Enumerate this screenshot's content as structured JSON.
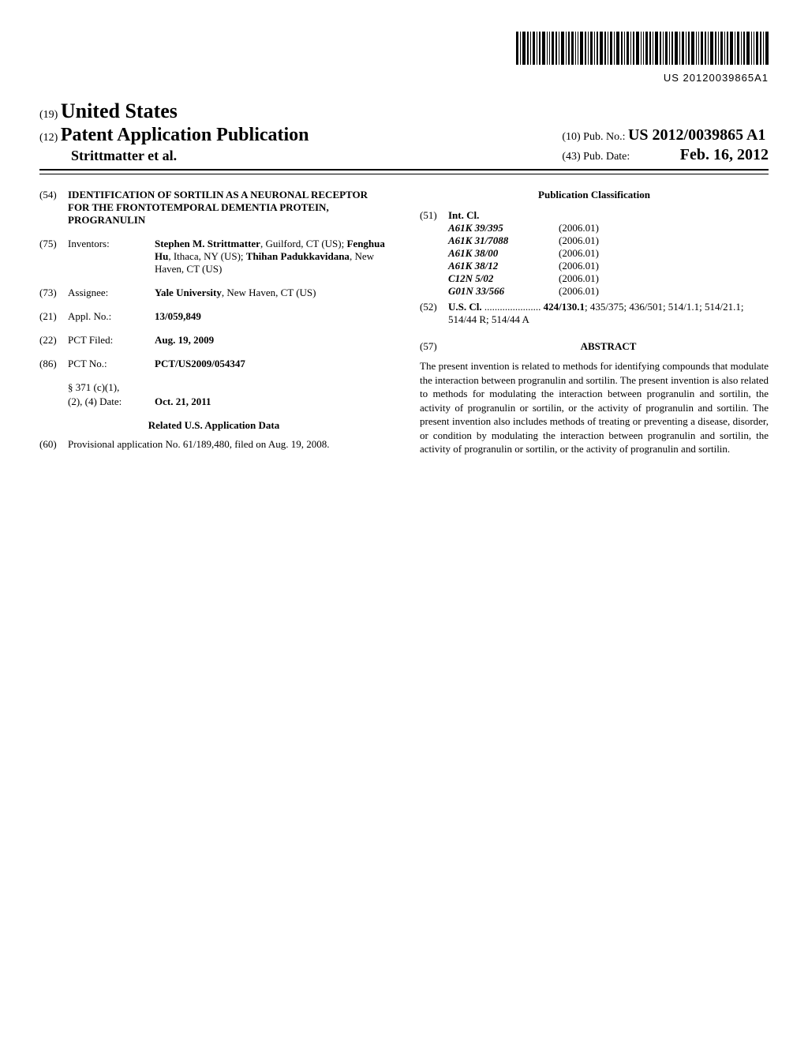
{
  "barcode_number": "US 20120039865A1",
  "header": {
    "prefix19": "(19)",
    "country": "United States",
    "prefix12": "(12)",
    "doc_type": "Patent Application Publication",
    "authors": "Strittmatter et al.",
    "prefix10": "(10)",
    "pubno_label": "Pub. No.:",
    "pubno": "US 2012/0039865 A1",
    "prefix43": "(43)",
    "pubdate_label": "Pub. Date:",
    "pubdate": "Feb. 16, 2012"
  },
  "left": {
    "f54_num": "(54)",
    "f54_title": "IDENTIFICATION OF SORTILIN AS A NEURONAL RECEPTOR FOR THE FRONTOTEMPORAL DEMENTIA PROTEIN, PROGRANULIN",
    "f75_num": "(75)",
    "f75_label": "Inventors:",
    "f75_val": "Stephen M. Strittmatter, Guilford, CT (US); Fenghua Hu, Ithaca, NY (US); Thihan Padukkavidana, New Haven, CT (US)",
    "inv1_name": "Stephen M. Strittmatter",
    "inv1_rest": ", Guilford, CT (US); ",
    "inv2_name": "Fenghua Hu",
    "inv2_rest": ", Ithaca, NY (US); ",
    "inv3_name": "Thihan Padukkavidana",
    "inv3_rest": ", New Haven, CT (US)",
    "f73_num": "(73)",
    "f73_label": "Assignee:",
    "f73_name": "Yale University",
    "f73_rest": ", New Haven, CT (US)",
    "f21_num": "(21)",
    "f21_label": "Appl. No.:",
    "f21_val": "13/059,849",
    "f22_num": "(22)",
    "f22_label": "PCT Filed:",
    "f22_val": "Aug. 19, 2009",
    "f86_num": "(86)",
    "f86_label": "PCT No.:",
    "f86_val": "PCT/US2009/054347",
    "s371_label": "§ 371 (c)(1),",
    "s371_label2": "(2), (4) Date:",
    "s371_val": "Oct. 21, 2011",
    "related_hdr": "Related U.S. Application Data",
    "f60_num": "(60)",
    "f60_val": "Provisional application No. 61/189,480, filed on Aug. 19, 2008."
  },
  "right": {
    "pubclass_hdr": "Publication Classification",
    "f51_num": "(51)",
    "f51_label": "Int. Cl.",
    "intcl": [
      {
        "code": "A61K 39/395",
        "year": "(2006.01)"
      },
      {
        "code": "A61K 31/7088",
        "year": "(2006.01)"
      },
      {
        "code": "A61K 38/00",
        "year": "(2006.01)"
      },
      {
        "code": "A61K 38/12",
        "year": "(2006.01)"
      },
      {
        "code": "C12N 5/02",
        "year": "(2006.01)"
      },
      {
        "code": "G01N 33/566",
        "year": "(2006.01)"
      }
    ],
    "f52_num": "(52)",
    "f52_label": "U.S. Cl.",
    "f52_dots": " ...................... ",
    "f52_bold": "424/130.1",
    "f52_rest": "; 435/375; 436/501; 514/1.1; 514/21.1; 514/44 R; 514/44 A",
    "f57_num": "(57)",
    "abstract_hdr": "ABSTRACT",
    "abstract": "The present invention is related to methods for identifying compounds that modulate the interaction between progranulin and sortilin. The present invention is also related to methods for modulating the interaction between progranulin and sortilin, the activity of progranulin or sortilin, or the activity of progranulin and sortilin. The present invention also includes methods of treating or preventing a disease, disorder, or condition by modulating the interaction between progranulin and sortilin, the activity of progranulin or sortilin, or the activity of progranulin and sortilin."
  }
}
